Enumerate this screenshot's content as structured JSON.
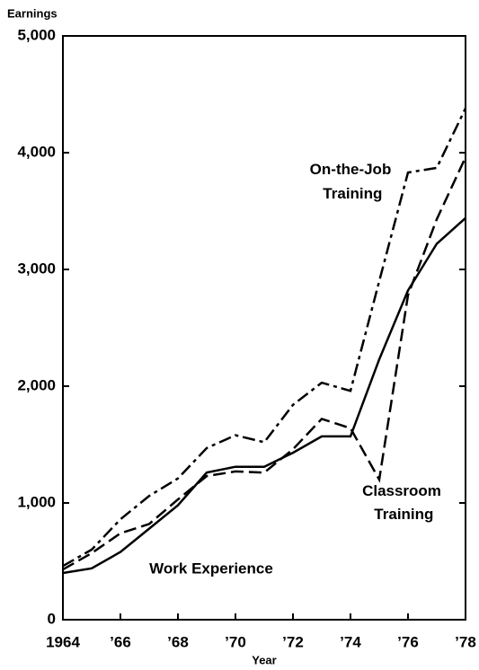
{
  "chart_data": {
    "type": "line",
    "y_label": "Earnings",
    "x_label": "Year",
    "x": [
      1964,
      1965,
      1966,
      1967,
      1968,
      1969,
      1970,
      1971,
      1972,
      1973,
      1974,
      1975,
      1976,
      1977,
      1978
    ],
    "xlim": [
      1964,
      1978
    ],
    "xticks": [
      {
        "value": 1964,
        "label": "1964"
      },
      {
        "value": 1966,
        "label": "’66"
      },
      {
        "value": 1968,
        "label": "’68"
      },
      {
        "value": 1970,
        "label": "’70"
      },
      {
        "value": 1972,
        "label": "’72"
      },
      {
        "value": 1974,
        "label": "’74"
      },
      {
        "value": 1976,
        "label": "’76"
      },
      {
        "value": 1978,
        "label": "’78"
      }
    ],
    "ylim": [
      0,
      5000
    ],
    "yticks": [
      0,
      {
        "value": 1000,
        "label": "1,000"
      },
      {
        "value": 2000,
        "label": "2,000"
      },
      {
        "value": 3000,
        "label": "3,000"
      },
      {
        "value": 4000,
        "label": "4,000"
      },
      {
        "value": 5000,
        "label": "5,000"
      }
    ],
    "series": [
      {
        "name": "Work Experience",
        "color": "#000000",
        "line_style": "solid",
        "values": [
          400,
          440,
          580,
          780,
          980,
          1260,
          1310,
          1310,
          1430,
          1570,
          1570,
          2230,
          2820,
          3220,
          3440
        ]
      },
      {
        "name": "On-the-Job Training",
        "color": "#000000",
        "line_style": "dashdot",
        "values": [
          460,
          600,
          860,
          1060,
          1210,
          1470,
          1580,
          1520,
          1840,
          2030,
          1960,
          2900,
          3830,
          3870,
          4380
        ]
      },
      {
        "name": "Classroom Training",
        "color": "#000000",
        "line_style": "dashed",
        "values": [
          430,
          570,
          740,
          820,
          1030,
          1230,
          1270,
          1260,
          1460,
          1720,
          1640,
          1200,
          2780,
          3430,
          3960
        ]
      }
    ]
  }
}
